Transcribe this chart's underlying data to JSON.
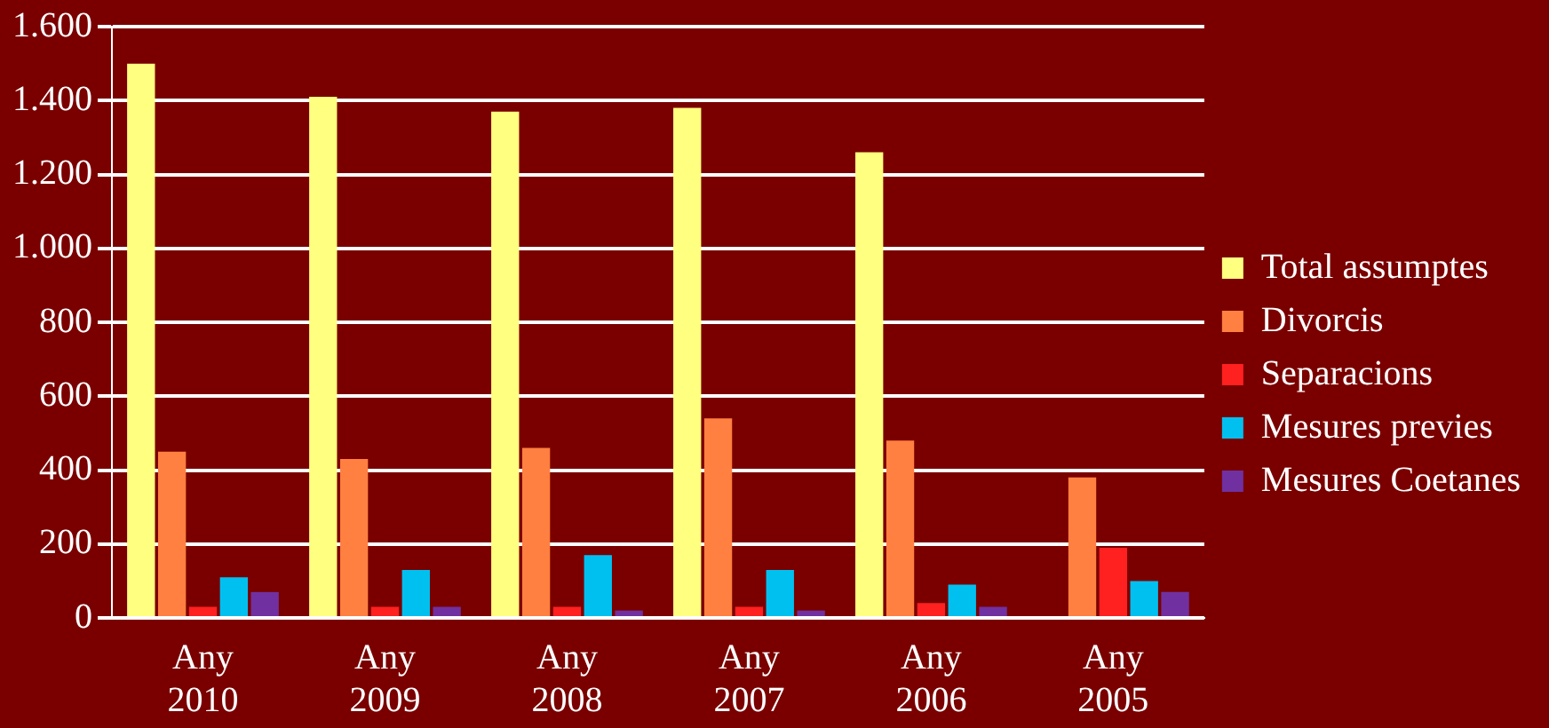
{
  "chart_data": {
    "type": "bar",
    "categories": [
      "Any 2010",
      "Any 2009",
      "Any 2008",
      "Any 2007",
      "Any 2006",
      "Any 2005"
    ],
    "series": [
      {
        "name": "Total assumptes",
        "color": "#ffff80",
        "values": [
          1500,
          1410,
          1370,
          1380,
          1260,
          0
        ]
      },
      {
        "name": "Divorcis",
        "color": "#ff8040",
        "values": [
          450,
          430,
          460,
          540,
          480,
          380
        ]
      },
      {
        "name": "Separacions",
        "color": "#ff2020",
        "values": [
          30,
          30,
          30,
          30,
          40,
          190
        ]
      },
      {
        "name": "Mesures previes",
        "color": "#00c0f0",
        "values": [
          110,
          130,
          170,
          130,
          90,
          100
        ]
      },
      {
        "name": "Mesures Coetanes",
        "color": "#7030a0",
        "values": [
          70,
          30,
          20,
          20,
          30,
          70
        ]
      }
    ],
    "ylim": [
      0,
      1600
    ],
    "yticks": [
      0,
      200,
      400,
      600,
      800,
      {
        "value": 1000,
        "label": "1.000"
      },
      {
        "value": 1200,
        "label": "1.200"
      },
      {
        "value": 1400,
        "label": "1.400"
      },
      {
        "value": 1600,
        "label": "1.600"
      }
    ],
    "grid": "y",
    "legend": "right"
  }
}
